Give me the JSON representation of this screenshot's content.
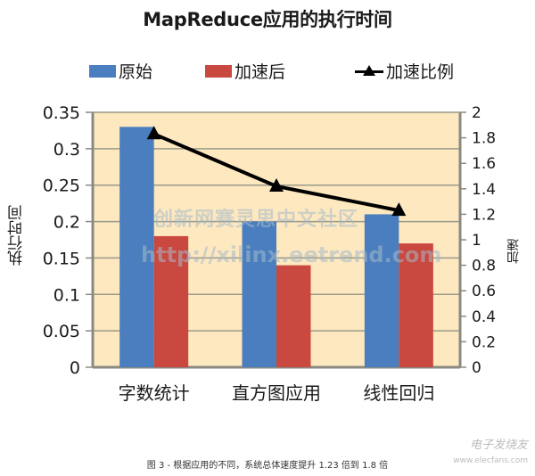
{
  "title": "MapReduce应用的执行时间",
  "legend": [
    {
      "label": "原始",
      "color": "#4a7ebf",
      "kind": "bar"
    },
    {
      "label": "加速后",
      "color": "#c9483f",
      "kind": "bar"
    },
    {
      "label": "加速比例",
      "color": "#000000",
      "kind": "line-triangle"
    }
  ],
  "axes": {
    "left_label": "执行时间",
    "right_label": "加速",
    "left_ticks": [
      "0.35",
      "0.3",
      "0.25",
      "0.2",
      "0.15",
      "0.1",
      "0.05",
      "0"
    ],
    "right_ticks": [
      "2",
      "1.8",
      "1.6",
      "1.4",
      "1.2",
      "1",
      "0.8",
      "0.6",
      "0.4",
      "0.2",
      "0"
    ],
    "categories": [
      "字数统计",
      "直方图应用",
      "线性回归"
    ]
  },
  "caption": "图 3 - 根据应用的不同，系统总体速度提升 1.23 倍到 1.8 倍",
  "watermarks": {
    "center_cn": "创新网赛灵思中文社区",
    "center_url": "http://xilinx.eetrend.com",
    "corner_logo": "电子发烧友",
    "corner_url": "www.elecfans.com"
  },
  "colors": {
    "plot_bg": "#fde8c0",
    "grid": "#9a9a8a",
    "axis": "#8a8a80",
    "bar_original": "#4a7ebf",
    "bar_accelerated": "#c9483f",
    "line": "#000000"
  },
  "chart_data": {
    "type": "bar",
    "title": "MapReduce应用的执行时间",
    "categories": [
      "字数统计",
      "直方图应用",
      "线性回归"
    ],
    "series": [
      {
        "name": "原始",
        "type": "bar",
        "axis": "left",
        "values": [
          0.33,
          0.2,
          0.21
        ]
      },
      {
        "name": "加速后",
        "type": "bar",
        "axis": "left",
        "values": [
          0.18,
          0.14,
          0.17
        ]
      },
      {
        "name": "加速比例",
        "type": "line",
        "axis": "right",
        "marker": "triangle",
        "values": [
          1.83,
          1.42,
          1.23
        ]
      }
    ],
    "xlabel": "",
    "ylabel": "执行时间",
    "ylabel_right": "加速",
    "ylim": [
      0,
      0.35
    ],
    "ylim_right": [
      0,
      2
    ],
    "yticks": [
      0,
      0.05,
      0.1,
      0.15,
      0.2,
      0.25,
      0.3,
      0.35
    ],
    "yticks_right": [
      0,
      0.2,
      0.4,
      0.6,
      0.8,
      1,
      1.2,
      1.4,
      1.6,
      1.8,
      2
    ],
    "grid": true,
    "legend_position": "top"
  }
}
